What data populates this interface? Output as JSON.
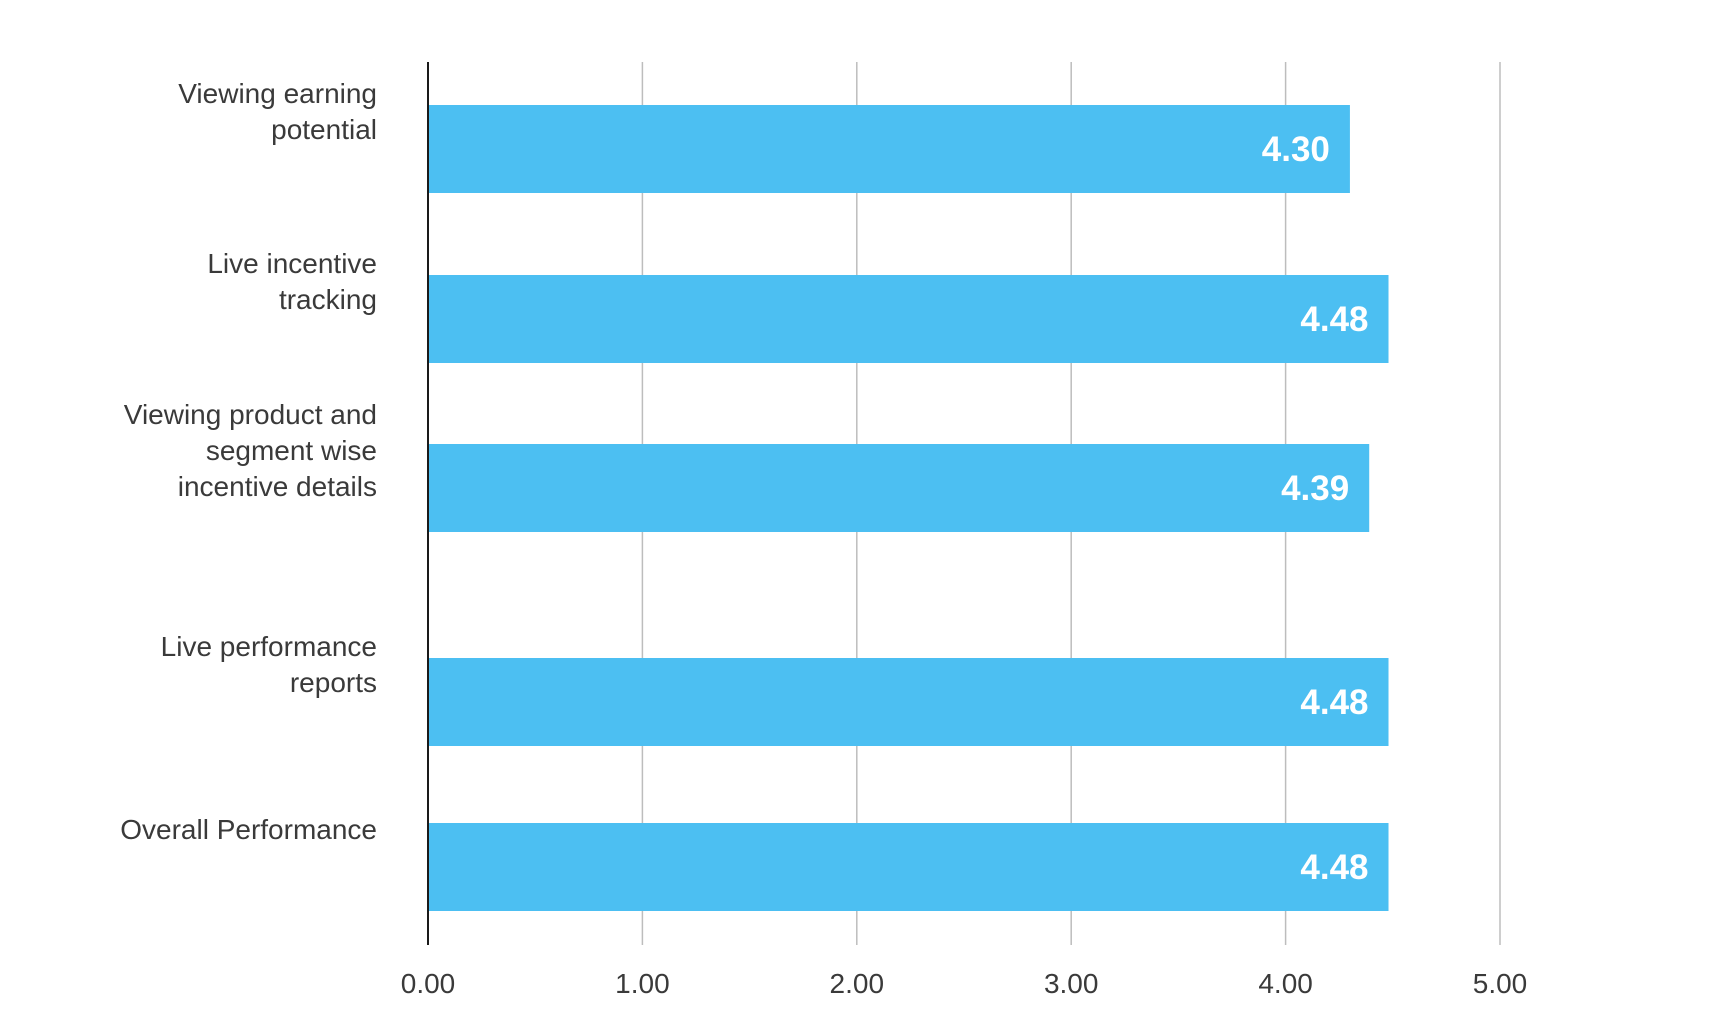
{
  "chart_data": {
    "type": "bar",
    "orientation": "horizontal",
    "title": "",
    "xlabel": "",
    "ylabel": "",
    "categories": [
      "Viewing earning potential",
      "Live incentive tracking",
      "Viewing product and segment wise incentive details",
      "Live performance reports",
      "Overall Performance"
    ],
    "category_label_lines": [
      [
        "Viewing earning",
        "potential"
      ],
      [
        "Live incentive",
        "tracking"
      ],
      [
        "Viewing product and",
        "segment wise",
        "incentive details"
      ],
      [
        "Live performance",
        "reports"
      ],
      [
        "Overall Performance"
      ]
    ],
    "values": [
      4.3,
      4.48,
      4.39,
      4.48,
      4.48
    ],
    "value_labels": [
      "4.30",
      "4.48",
      "4.39",
      "4.48",
      "4.48"
    ],
    "xlim": [
      0,
      5
    ],
    "x_ticks": [
      0,
      1,
      2,
      3,
      4,
      5
    ],
    "x_tick_labels": [
      "0.00",
      "1.00",
      "2.00",
      "3.00",
      "4.00",
      "5.00"
    ],
    "grid": "vertical",
    "legend": "none",
    "colors": {
      "bar": "#4cbff2",
      "grid": "#bdbdbd",
      "axis": "#1a1a1a",
      "value_label": "#ffffff",
      "text": "#3a3a3a"
    }
  }
}
